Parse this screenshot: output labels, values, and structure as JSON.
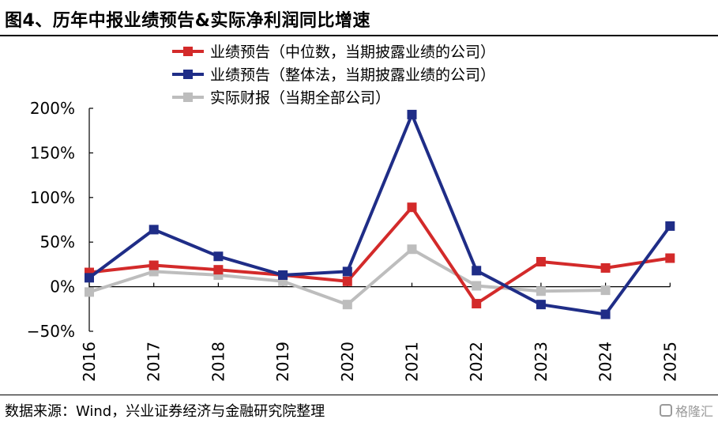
{
  "title": "图4、历年中报业绩预告&实际净利润同比增速",
  "source": "数据来源：Wind，兴业证券经济与金融研究院整理",
  "watermark": "格隆汇",
  "chart_data": {
    "type": "line",
    "categories": [
      "2016",
      "2017",
      "2018",
      "2019",
      "2020",
      "2021",
      "2022",
      "2023",
      "2024",
      "2025"
    ],
    "y_ticks": [
      "200%",
      "150%",
      "100%",
      "50%",
      "0%",
      "−50%"
    ],
    "ylim": [
      -50,
      200
    ],
    "grid": false,
    "legend_position": "top-center",
    "series": [
      {
        "name": "业绩预告（中位数，当期披露业绩的公司）",
        "color": "#d32a2a",
        "values": [
          16,
          24,
          19,
          13,
          6,
          89,
          -19,
          28,
          21,
          32
        ]
      },
      {
        "name": "业绩预告（整体法，当期披露业绩的公司）",
        "color": "#1f2d87",
        "values": [
          10,
          64,
          34,
          13,
          17,
          193,
          18,
          -20,
          -31,
          68
        ]
      },
      {
        "name": "实际财报（当期全部公司）",
        "color": "#bdbdbd",
        "values": [
          -6,
          17,
          13,
          6,
          -20,
          42,
          1,
          -5,
          -4,
          null
        ]
      }
    ]
  }
}
